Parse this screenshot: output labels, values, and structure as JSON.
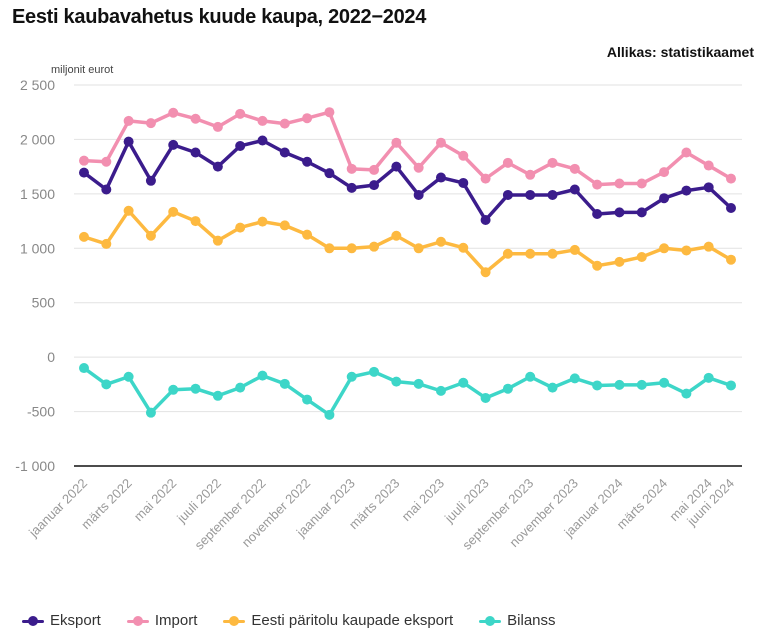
{
  "chart_data": {
    "type": "line",
    "title": "Eesti kaubavahetus kuude kaupa, 2022−2024",
    "source": "Allikas: statistikaamet",
    "ylabel": "miljonit eurot",
    "xlabel": "",
    "ylim": [
      -1000,
      2500
    ],
    "yticks": [
      2500,
      2000,
      1500,
      1000,
      500,
      0,
      -500,
      -1000
    ],
    "ytick_labels": [
      "2 500",
      "2 000",
      "1 500",
      "1 000",
      "500",
      "0",
      "-500",
      "-1 000"
    ],
    "grid": true,
    "legend_position": "bottom-left",
    "x": [
      "jaanuar 2022",
      "veebruar 2022",
      "märts 2022",
      "aprill 2022",
      "mai 2022",
      "juuni 2022",
      "juuli 2022",
      "august 2022",
      "september 2022",
      "oktoober 2022",
      "november 2022",
      "detsember 2022",
      "jaanuar 2023",
      "veebruar 2023",
      "märts 2023",
      "aprill 2023",
      "mai 2023",
      "juuni 2023",
      "juuli 2023",
      "august 2023",
      "september 2023",
      "oktoober 2023",
      "november 2023",
      "detsember 2023",
      "jaanuar 2024",
      "veebruar 2024",
      "märts 2024",
      "aprill 2024",
      "mai 2024",
      "juuni 2024"
    ],
    "xtick_labels": [
      {
        "index": 0,
        "label": "jaanuar 2022"
      },
      {
        "index": 2,
        "label": "märts 2022"
      },
      {
        "index": 4,
        "label": "mai 2022"
      },
      {
        "index": 6,
        "label": "juuli 2022"
      },
      {
        "index": 8,
        "label": "september 2022"
      },
      {
        "index": 10,
        "label": "november 2022"
      },
      {
        "index": 12,
        "label": "jaanuar 2023"
      },
      {
        "index": 14,
        "label": "märts 2023"
      },
      {
        "index": 16,
        "label": "mai 2023"
      },
      {
        "index": 18,
        "label": "juuli 2023"
      },
      {
        "index": 20,
        "label": "september 2023"
      },
      {
        "index": 22,
        "label": "november 2023"
      },
      {
        "index": 24,
        "label": "jaanuar 2024"
      },
      {
        "index": 26,
        "label": "märts 2024"
      },
      {
        "index": 28,
        "label": "mai 2024"
      },
      {
        "index": 29,
        "label": "juuni 2024"
      }
    ],
    "series": [
      {
        "name": "Eksport",
        "color": "#3b1c8c",
        "values": [
          1695,
          1540,
          1980,
          1620,
          1950,
          1880,
          1750,
          1940,
          1990,
          1880,
          1795,
          1690,
          1555,
          1580,
          1750,
          1490,
          1650,
          1600,
          1260,
          1490,
          1490,
          1490,
          1540,
          1315,
          1330,
          1330,
          1460,
          1530,
          1560,
          1370
        ]
      },
      {
        "name": "Import",
        "color": "#f28fb0",
        "values": [
          1805,
          1795,
          2170,
          2150,
          2245,
          2190,
          2115,
          2235,
          2170,
          2145,
          2195,
          2250,
          1730,
          1720,
          1970,
          1740,
          1970,
          1850,
          1640,
          1785,
          1675,
          1785,
          1730,
          1585,
          1595,
          1595,
          1700,
          1880,
          1760,
          1640
        ]
      },
      {
        "name": "Eesti päritolu kaupade eksport",
        "color": "#fdb940",
        "values": [
          1105,
          1040,
          1345,
          1115,
          1335,
          1250,
          1070,
          1190,
          1245,
          1210,
          1125,
          1000,
          1000,
          1015,
          1115,
          1000,
          1060,
          1005,
          780,
          950,
          950,
          950,
          985,
          840,
          875,
          920,
          1000,
          980,
          1015,
          895
        ]
      },
      {
        "name": "Bilanss",
        "color": "#3dd6c8",
        "values": [
          -100,
          -250,
          -180,
          -510,
          -300,
          -290,
          -355,
          -280,
          -170,
          -245,
          -390,
          -530,
          -180,
          -135,
          -225,
          -245,
          -310,
          -235,
          -375,
          -290,
          -180,
          -280,
          -195,
          -260,
          -255,
          -255,
          -235,
          -335,
          -190,
          -260
        ]
      }
    ]
  }
}
